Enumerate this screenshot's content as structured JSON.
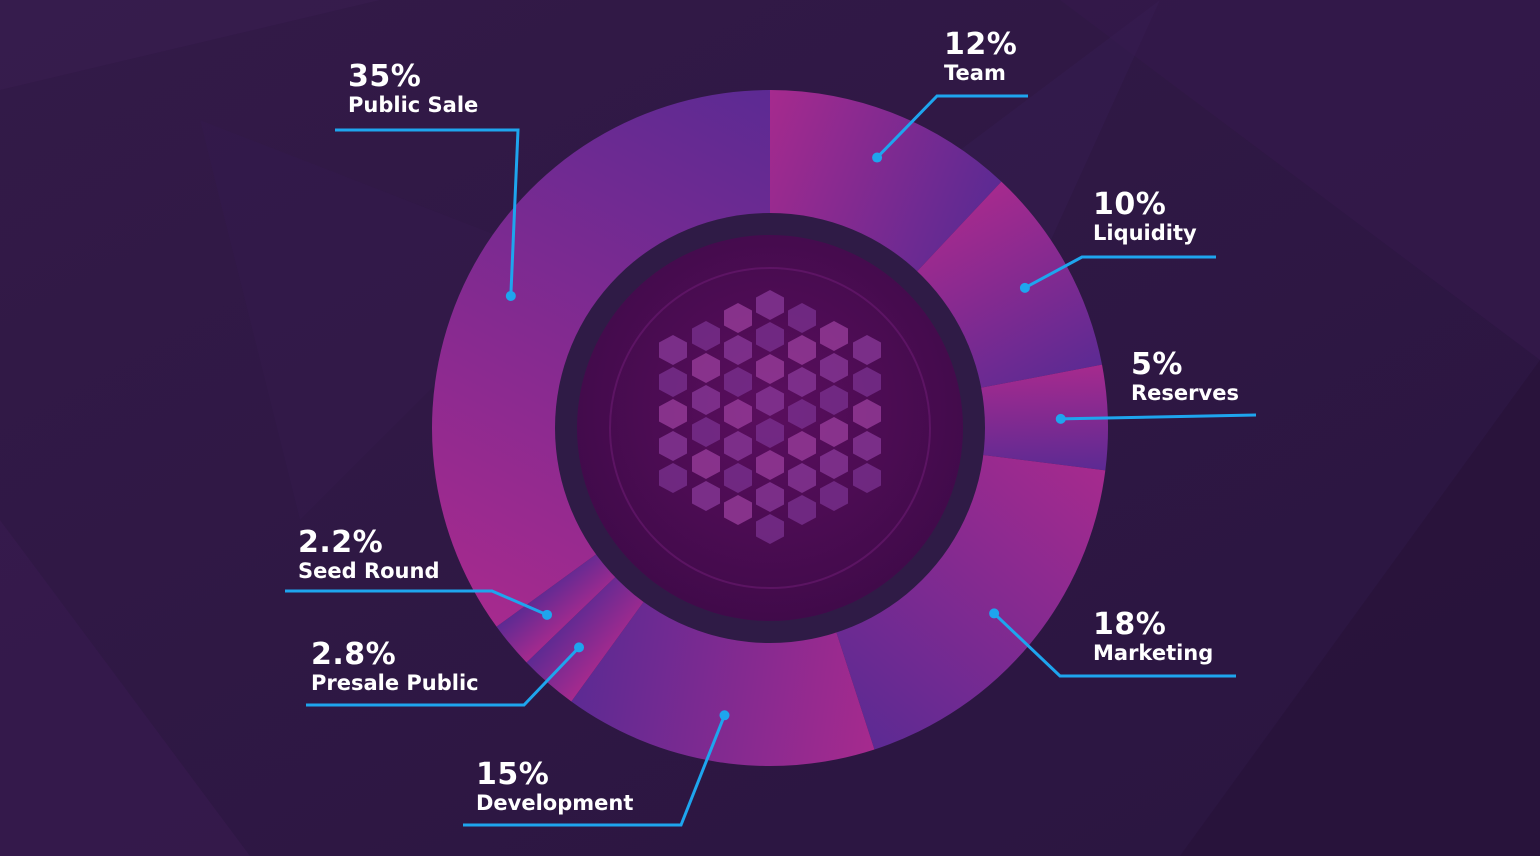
{
  "chart_data": {
    "type": "pie",
    "variant": "donut",
    "colors": {
      "background": "#2e1843",
      "slice_light": "#a62a8e",
      "slice_dark": "#5c2a93",
      "leader_line": "#1ea5ee",
      "label_text": "#ffffff"
    },
    "slices": [
      {
        "label": "Team",
        "value": 12,
        "value_label": "12%"
      },
      {
        "label": "Liquidity",
        "value": 10,
        "value_label": "10%"
      },
      {
        "label": "Reserves",
        "value": 5,
        "value_label": "5%"
      },
      {
        "label": "Marketing",
        "value": 18,
        "value_label": "18%"
      },
      {
        "label": "Development",
        "value": 15,
        "value_label": "15%"
      },
      {
        "label": "Presale Public",
        "value": 2.8,
        "value_label": "2.8%"
      },
      {
        "label": "Seed Round",
        "value": 2.2,
        "value_label": "2.2%"
      },
      {
        "label": "Public Sale",
        "value": 35,
        "value_label": "35%"
      }
    ],
    "center_icon": "faceted-gem-logo-icon"
  }
}
